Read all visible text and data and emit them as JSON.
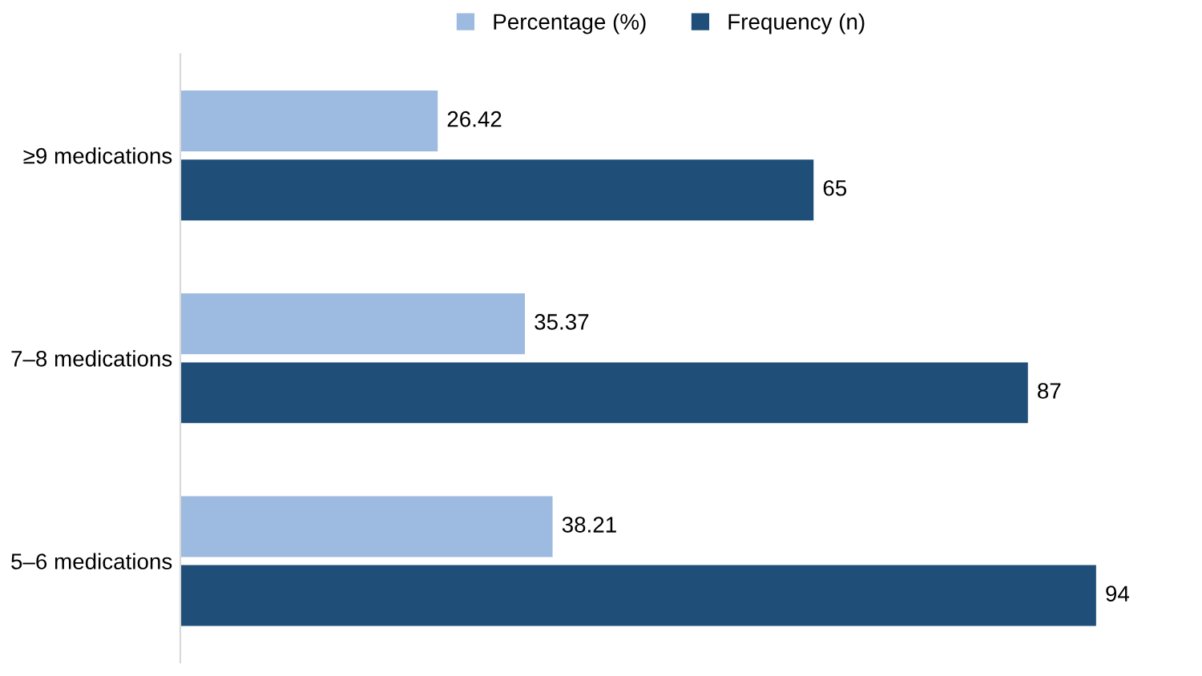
{
  "chart_data": {
    "type": "bar",
    "orientation": "horizontal",
    "categories": [
      "≥9 medications",
      "7–8 medications",
      "5–6 medications"
    ],
    "series": [
      {
        "name": "Percentage (%)",
        "color": "#9dbae0",
        "values": [
          26.42,
          35.37,
          38.21
        ]
      },
      {
        "name": "Frequency (n)",
        "color": "#1f4e79",
        "values": [
          65,
          87,
          94
        ]
      }
    ],
    "data_labels": true,
    "legend": "top",
    "grid": false,
    "tick_labels": "y"
  }
}
